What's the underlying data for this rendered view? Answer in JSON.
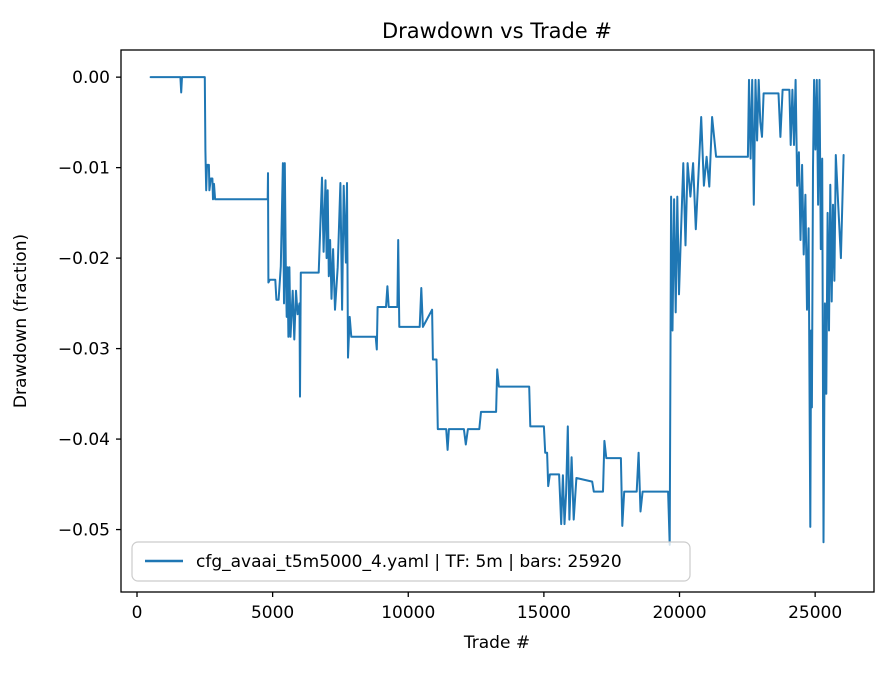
{
  "figure": {
    "background": "#ffffff"
  },
  "chart_data": {
    "type": "line",
    "title": "Drawdown vs Trade #",
    "xlabel": "Trade #",
    "ylabel": "Drawdown (fraction)",
    "grid": false,
    "legend_position": "lower left",
    "line_color": "#1f77b4",
    "axis_color": "#000000",
    "xlim": [
      -590,
      27170
    ],
    "ylim": [
      -0.0569,
      0.003
    ],
    "x_ticks": [
      {
        "value": 0,
        "label": "0"
      },
      {
        "value": 5000,
        "label": "5000"
      },
      {
        "value": 10000,
        "label": "10000"
      },
      {
        "value": 15000,
        "label": "15000"
      },
      {
        "value": 20000,
        "label": "20000"
      },
      {
        "value": 25000,
        "label": "25000"
      }
    ],
    "y_ticks": [
      {
        "value": 0.0,
        "label": "0.00"
      },
      {
        "value": -0.01,
        "label": "−0.01"
      },
      {
        "value": -0.02,
        "label": "−0.02"
      },
      {
        "value": -0.03,
        "label": "−0.03"
      },
      {
        "value": -0.04,
        "label": "−0.04"
      },
      {
        "value": -0.05,
        "label": "−0.05"
      }
    ],
    "series": [
      {
        "name": "cfg_avaai_t5m5000_4.yaml | TF: 5m | bars: 25920",
        "points": [
          [
            500,
            0
          ],
          [
            1600,
            0
          ],
          [
            1630,
            -0.0017
          ],
          [
            1660,
            0
          ],
          [
            2500,
            0
          ],
          [
            2520,
            -0.0081
          ],
          [
            2550,
            -0.0125
          ],
          [
            2580,
            -0.0097
          ],
          [
            2650,
            -0.0097
          ],
          [
            2670,
            -0.0125
          ],
          [
            2720,
            -0.0112
          ],
          [
            2780,
            -0.0112
          ],
          [
            2800,
            -0.0135
          ],
          [
            2840,
            -0.0118
          ],
          [
            2880,
            -0.0135
          ],
          [
            4820,
            -0.0135
          ],
          [
            4830,
            -0.0106
          ],
          [
            4845,
            -0.0227
          ],
          [
            4900,
            -0.0224
          ],
          [
            5100,
            -0.0224
          ],
          [
            5140,
            -0.0246
          ],
          [
            5220,
            -0.0246
          ],
          [
            5300,
            -0.0209
          ],
          [
            5380,
            -0.0095
          ],
          [
            5420,
            -0.025
          ],
          [
            5450,
            -0.0095
          ],
          [
            5490,
            -0.022
          ],
          [
            5520,
            -0.0265
          ],
          [
            5550,
            -0.021
          ],
          [
            5580,
            -0.0287
          ],
          [
            5620,
            -0.021
          ],
          [
            5660,
            -0.0287
          ],
          [
            5740,
            -0.0236
          ],
          [
            5800,
            -0.029
          ],
          [
            5860,
            -0.0236
          ],
          [
            5920,
            -0.0262
          ],
          [
            5990,
            -0.025
          ],
          [
            6010,
            -0.0353
          ],
          [
            6040,
            -0.0216
          ],
          [
            6700,
            -0.0216
          ],
          [
            6820,
            -0.0111
          ],
          [
            6880,
            -0.0193
          ],
          [
            6950,
            -0.0114
          ],
          [
            6990,
            -0.02
          ],
          [
            7030,
            -0.0125
          ],
          [
            7070,
            -0.022
          ],
          [
            7120,
            -0.018
          ],
          [
            7170,
            -0.0245
          ],
          [
            7230,
            -0.019
          ],
          [
            7300,
            -0.0257
          ],
          [
            7400,
            -0.021
          ],
          [
            7500,
            -0.0117
          ],
          [
            7560,
            -0.0257
          ],
          [
            7620,
            -0.012
          ],
          [
            7700,
            -0.0205
          ],
          [
            7740,
            -0.0117
          ],
          [
            7780,
            -0.031
          ],
          [
            7840,
            -0.0265
          ],
          [
            7900,
            -0.0287
          ],
          [
            8800,
            -0.0287
          ],
          [
            8840,
            -0.0301
          ],
          [
            8870,
            -0.0254
          ],
          [
            9180,
            -0.0254
          ],
          [
            9230,
            -0.0231
          ],
          [
            9280,
            -0.0254
          ],
          [
            9600,
            -0.0254
          ],
          [
            9630,
            -0.018
          ],
          [
            9670,
            -0.0276
          ],
          [
            10420,
            -0.0276
          ],
          [
            10480,
            -0.0233
          ],
          [
            10540,
            -0.0276
          ],
          [
            10880,
            -0.0257
          ],
          [
            10910,
            -0.0312
          ],
          [
            11040,
            -0.0312
          ],
          [
            11090,
            -0.0389
          ],
          [
            11400,
            -0.0389
          ],
          [
            11450,
            -0.0412
          ],
          [
            11500,
            -0.0389
          ],
          [
            12050,
            -0.0389
          ],
          [
            12120,
            -0.0406
          ],
          [
            12200,
            -0.0389
          ],
          [
            12620,
            -0.0389
          ],
          [
            12680,
            -0.037
          ],
          [
            13240,
            -0.037
          ],
          [
            13280,
            -0.0323
          ],
          [
            13340,
            -0.0342
          ],
          [
            14460,
            -0.0342
          ],
          [
            14500,
            -0.0386
          ],
          [
            15000,
            -0.0386
          ],
          [
            15050,
            -0.0415
          ],
          [
            15120,
            -0.0415
          ],
          [
            15160,
            -0.0452
          ],
          [
            15220,
            -0.0439
          ],
          [
            15560,
            -0.0439
          ],
          [
            15640,
            -0.0494
          ],
          [
            15700,
            -0.044
          ],
          [
            15760,
            -0.0494
          ],
          [
            15820,
            -0.046
          ],
          [
            15880,
            -0.0386
          ],
          [
            15940,
            -0.0489
          ],
          [
            16020,
            -0.042
          ],
          [
            16100,
            -0.0489
          ],
          [
            16200,
            -0.0443
          ],
          [
            16780,
            -0.0447
          ],
          [
            16840,
            -0.0458
          ],
          [
            17180,
            -0.0458
          ],
          [
            17230,
            -0.0402
          ],
          [
            17300,
            -0.0421
          ],
          [
            17840,
            -0.0421
          ],
          [
            17890,
            -0.0496
          ],
          [
            17960,
            -0.0458
          ],
          [
            18420,
            -0.0458
          ],
          [
            18490,
            -0.0415
          ],
          [
            18560,
            -0.048
          ],
          [
            18640,
            -0.0458
          ],
          [
            19580,
            -0.0458
          ],
          [
            19640,
            -0.0517
          ],
          [
            19690,
            -0.0132
          ],
          [
            19740,
            -0.028
          ],
          [
            19800,
            -0.0135
          ],
          [
            19860,
            -0.026
          ],
          [
            19920,
            -0.0132
          ],
          [
            19980,
            -0.024
          ],
          [
            20060,
            -0.0168
          ],
          [
            20140,
            -0.0095
          ],
          [
            20220,
            -0.0186
          ],
          [
            20300,
            -0.0095
          ],
          [
            20400,
            -0.0132
          ],
          [
            20500,
            -0.0095
          ],
          [
            20600,
            -0.0168
          ],
          [
            20700,
            -0.0107
          ],
          [
            20800,
            -0.0044
          ],
          [
            20900,
            -0.012
          ],
          [
            21000,
            -0.0088
          ],
          [
            21100,
            -0.0121
          ],
          [
            21200,
            -0.0044
          ],
          [
            21350,
            -0.0088
          ],
          [
            22520,
            -0.0088
          ],
          [
            22560,
            -0.0003
          ],
          [
            22620,
            -0.009
          ],
          [
            22680,
            -0.0003
          ],
          [
            22740,
            -0.0141
          ],
          [
            22800,
            -0.0003
          ],
          [
            22860,
            -0.007
          ],
          [
            22920,
            -0.0003
          ],
          [
            22980,
            -0.005
          ],
          [
            23040,
            -0.0066
          ],
          [
            23100,
            -0.0018
          ],
          [
            23650,
            -0.0018
          ],
          [
            23720,
            -0.0066
          ],
          [
            23800,
            -0.0014
          ],
          [
            24050,
            -0.0014
          ],
          [
            24100,
            -0.0075
          ],
          [
            24160,
            -0.0014
          ],
          [
            24220,
            -0.0075
          ],
          [
            24280,
            -0.0003
          ],
          [
            24340,
            -0.012
          ],
          [
            24400,
            -0.0083
          ],
          [
            24460,
            -0.018
          ],
          [
            24520,
            -0.0097
          ],
          [
            24580,
            -0.0196
          ],
          [
            24640,
            -0.013
          ],
          [
            24700,
            -0.0257
          ],
          [
            24760,
            -0.0167
          ],
          [
            24820,
            -0.0497
          ],
          [
            24850,
            -0.028
          ],
          [
            24880,
            -0.0365
          ],
          [
            24920,
            -0.01
          ],
          [
            24960,
            -0.0003
          ],
          [
            25010,
            -0.008
          ],
          [
            25060,
            -0.0003
          ],
          [
            25110,
            -0.0141
          ],
          [
            25160,
            -0.0003
          ],
          [
            25210,
            -0.019
          ],
          [
            25260,
            -0.009
          ],
          [
            25310,
            -0.0514
          ],
          [
            25360,
            -0.025
          ],
          [
            25410,
            -0.035
          ],
          [
            25460,
            -0.015
          ],
          [
            25510,
            -0.028
          ],
          [
            25560,
            -0.0119
          ],
          [
            25610,
            -0.0248
          ],
          [
            25660,
            -0.0141
          ],
          [
            25710,
            -0.0225
          ],
          [
            25760,
            -0.0086
          ],
          [
            25850,
            -0.0141
          ],
          [
            25950,
            -0.02
          ],
          [
            26050,
            -0.0086
          ]
        ]
      }
    ]
  }
}
